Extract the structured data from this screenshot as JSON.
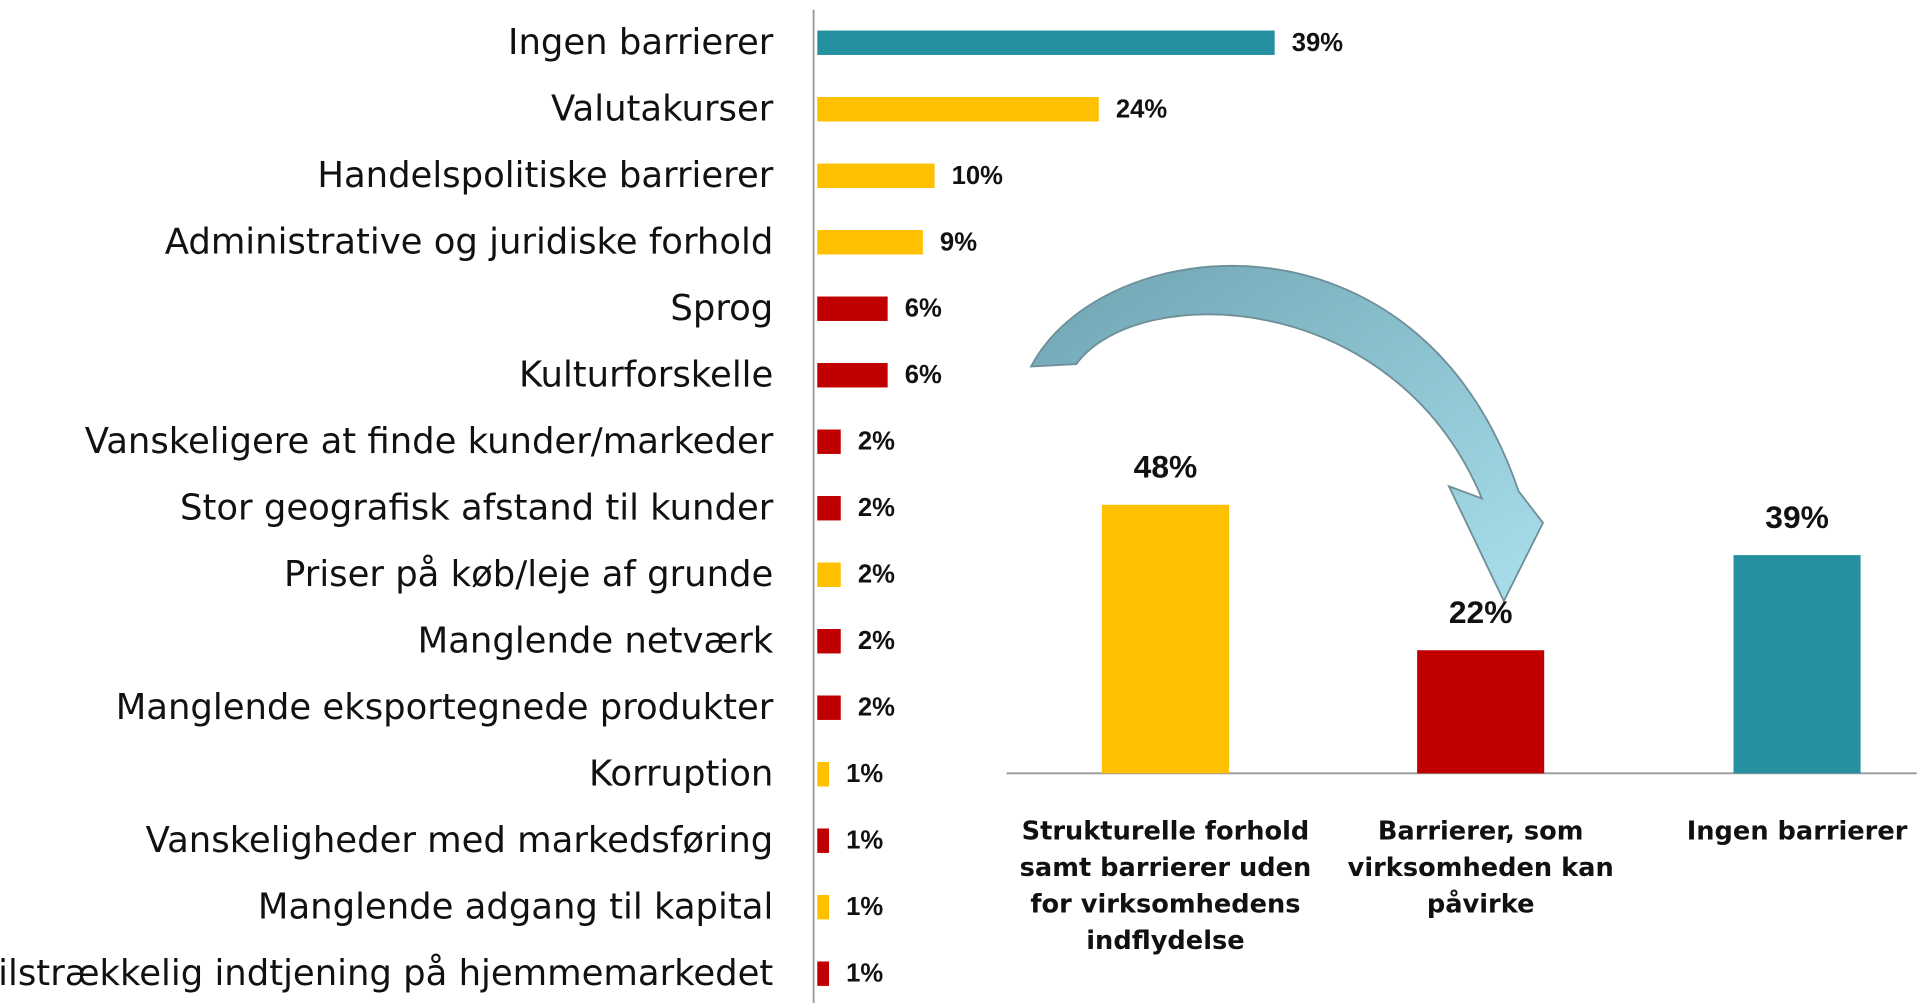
{
  "chart_data": [
    {
      "type": "barh",
      "categories": [
        "Ingen barrierer",
        "Valutakurser",
        "Handelspolitiske barrierer",
        "Administrative og juridiske forhold",
        "Sprog",
        "Kulturforskelle",
        "Vanskeligere at finde kunder/markeder",
        "Stor geografisk afstand til kunder",
        "Priser på køb/leje af grunde",
        "Manglende netværk",
        "Manglende eksportegnede produkter",
        "Korruption",
        "Vanskeligheder med markedsføring",
        "Manglende adgang til kapital",
        "Utilstrækkelig indtjening på hjemmemarkedet"
      ],
      "values": [
        39,
        24,
        10,
        9,
        6,
        6,
        2,
        2,
        2,
        2,
        2,
        1,
        1,
        1,
        1
      ],
      "value_labels": [
        "39%",
        "24%",
        "10%",
        "9%",
        "6%",
        "6%",
        "2%",
        "2%",
        "2%",
        "2%",
        "2%",
        "1%",
        "1%",
        "1%",
        "1%"
      ],
      "colors": [
        "#2591a0",
        "#ffc000",
        "#ffc000",
        "#ffc000",
        "#c00000",
        "#c00000",
        "#c00000",
        "#c00000",
        "#ffc000",
        "#c00000",
        "#c00000",
        "#ffc000",
        "#c00000",
        "#ffc000",
        "#c00000"
      ]
    },
    {
      "type": "bar",
      "categories": [
        "Strukturelle forhold samt barrierer uden for virksomhedens indflydelse",
        "Barrierer, som virksomheden kan påvirke",
        "Ingen barrierer"
      ],
      "values": [
        48,
        22,
        39
      ],
      "value_labels": [
        "48%",
        "22%",
        "39%"
      ],
      "colors": [
        "#ffc000",
        "#c00000",
        "#2591a0"
      ]
    }
  ]
}
